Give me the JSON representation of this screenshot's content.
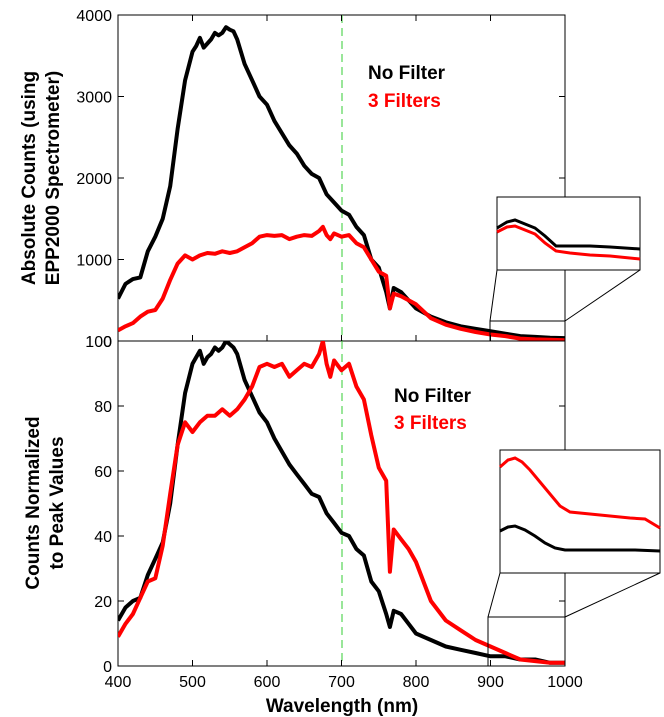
{
  "chart_data": [
    {
      "type": "line",
      "ylabel": [
        "Absolute Counts (using",
        "EPP2000 Spectrometer)"
      ],
      "xlim": [
        400,
        1000
      ],
      "ylim": [
        0,
        4000
      ],
      "yticks": [
        "0",
        "1000",
        "2000",
        "3000",
        "4000"
      ],
      "reference_line_x": 700,
      "legend": {
        "position": "top-right",
        "entries": [
          "No Filter",
          "3 Filters"
        ]
      },
      "inset": {
        "x_range": [
          900,
          1000
        ]
      },
      "series": [
        {
          "name": "No Filter",
          "color": "#000000",
          "x": [
            400,
            410,
            420,
            430,
            440,
            450,
            460,
            470,
            480,
            490,
            500,
            505,
            510,
            515,
            520,
            525,
            530,
            535,
            540,
            545,
            550,
            555,
            560,
            570,
            580,
            590,
            600,
            610,
            620,
            630,
            640,
            650,
            660,
            670,
            680,
            690,
            700,
            710,
            720,
            730,
            740,
            750,
            760,
            765,
            770,
            780,
            790,
            800,
            820,
            840,
            860,
            880,
            900,
            920,
            940,
            960,
            980,
            1000
          ],
          "values": [
            520,
            700,
            760,
            780,
            1100,
            1280,
            1500,
            1900,
            2600,
            3200,
            3550,
            3620,
            3720,
            3600,
            3650,
            3700,
            3780,
            3750,
            3780,
            3850,
            3820,
            3800,
            3700,
            3400,
            3200,
            3000,
            2900,
            2700,
            2550,
            2400,
            2300,
            2150,
            2050,
            2000,
            1800,
            1700,
            1600,
            1550,
            1400,
            1300,
            1000,
            900,
            600,
            400,
            650,
            600,
            500,
            400,
            300,
            230,
            180,
            150,
            120,
            90,
            60,
            50,
            40,
            35
          ]
        },
        {
          "name": "3 Filters",
          "color": "#ff0000",
          "x": [
            400,
            410,
            420,
            430,
            440,
            450,
            460,
            470,
            480,
            490,
            500,
            510,
            520,
            530,
            540,
            550,
            560,
            570,
            580,
            590,
            600,
            610,
            620,
            630,
            640,
            650,
            660,
            670,
            675,
            680,
            685,
            690,
            700,
            710,
            720,
            730,
            740,
            750,
            760,
            765,
            770,
            780,
            790,
            800,
            820,
            840,
            860,
            880,
            900,
            920,
            940,
            960,
            980,
            1000
          ],
          "values": [
            130,
            180,
            220,
            300,
            360,
            380,
            520,
            750,
            950,
            1050,
            1000,
            1050,
            1080,
            1070,
            1100,
            1080,
            1100,
            1150,
            1200,
            1280,
            1300,
            1290,
            1300,
            1250,
            1280,
            1300,
            1290,
            1350,
            1400,
            1300,
            1250,
            1320,
            1280,
            1300,
            1200,
            1150,
            1000,
            850,
            800,
            400,
            580,
            550,
            500,
            450,
            280,
            200,
            150,
            110,
            80,
            60,
            30,
            20,
            15,
            10
          ]
        }
      ]
    },
    {
      "type": "line",
      "ylabel": [
        "Counts Normalized",
        "to Peak Values"
      ],
      "xlabel": "Wavelength (nm)",
      "xlim": [
        400,
        1000
      ],
      "ylim": [
        0,
        100
      ],
      "xticks": [
        "400",
        "500",
        "600",
        "700",
        "800",
        "900",
        "1000"
      ],
      "yticks": [
        "0",
        "20",
        "40",
        "60",
        "80",
        "100"
      ],
      "reference_line_x": 700,
      "legend": {
        "position": "top-right",
        "entries": [
          "No Filter",
          "3 Filters"
        ]
      },
      "inset": {
        "x_range": [
          900,
          1000
        ]
      },
      "series": [
        {
          "name": "No Filter",
          "color": "#000000",
          "x": [
            400,
            410,
            420,
            430,
            440,
            450,
            460,
            470,
            480,
            490,
            500,
            505,
            510,
            515,
            520,
            525,
            530,
            535,
            540,
            545,
            550,
            555,
            560,
            570,
            580,
            590,
            600,
            610,
            620,
            630,
            640,
            650,
            660,
            670,
            680,
            690,
            700,
            710,
            720,
            730,
            740,
            750,
            760,
            765,
            770,
            780,
            790,
            800,
            820,
            840,
            860,
            880,
            900,
            920,
            940,
            960,
            980,
            1000
          ],
          "values": [
            14,
            18,
            20,
            21,
            28,
            33,
            38,
            50,
            68,
            84,
            93,
            95,
            97,
            93,
            95,
            96,
            98,
            97,
            98,
            100,
            99,
            98,
            96,
            88,
            83,
            78,
            75,
            70,
            66,
            62,
            59,
            56,
            53,
            52,
            47,
            44,
            41,
            40,
            36,
            34,
            26,
            23,
            16,
            12,
            17,
            16,
            13,
            10,
            8,
            6,
            5,
            4,
            3,
            3,
            2,
            2,
            1,
            1
          ]
        },
        {
          "name": "3 Filters",
          "color": "#ff0000",
          "x": [
            400,
            410,
            420,
            430,
            440,
            450,
            460,
            470,
            480,
            490,
            500,
            510,
            520,
            530,
            540,
            550,
            560,
            570,
            580,
            590,
            600,
            610,
            620,
            630,
            640,
            650,
            660,
            670,
            675,
            680,
            685,
            690,
            700,
            710,
            720,
            730,
            740,
            750,
            760,
            765,
            770,
            780,
            790,
            800,
            820,
            840,
            860,
            880,
            900,
            920,
            940,
            960,
            980,
            1000
          ],
          "values": [
            9,
            13,
            16,
            21,
            26,
            27,
            37,
            53,
            68,
            75,
            72,
            75,
            77,
            77,
            79,
            77,
            79,
            82,
            86,
            92,
            93,
            92,
            93,
            89,
            91,
            93,
            92,
            96,
            100,
            93,
            89,
            94,
            91,
            93,
            86,
            82,
            71,
            61,
            57,
            29,
            42,
            39,
            36,
            32,
            20,
            14,
            11,
            8,
            6,
            4,
            2,
            1.5,
            1,
            1
          ]
        }
      ]
    }
  ]
}
